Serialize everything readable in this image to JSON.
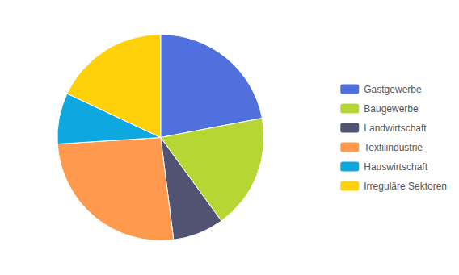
{
  "chart_data": {
    "type": "pie",
    "categories": [
      "Gastgewerbe",
      "Baugewerbe",
      "Landwirtschaft",
      "Textilindustrie",
      "Hauswirtschaft",
      "Irreguläre Sektoren"
    ],
    "values": [
      22,
      18,
      8,
      26,
      8,
      18
    ],
    "legend": "right"
  }
}
